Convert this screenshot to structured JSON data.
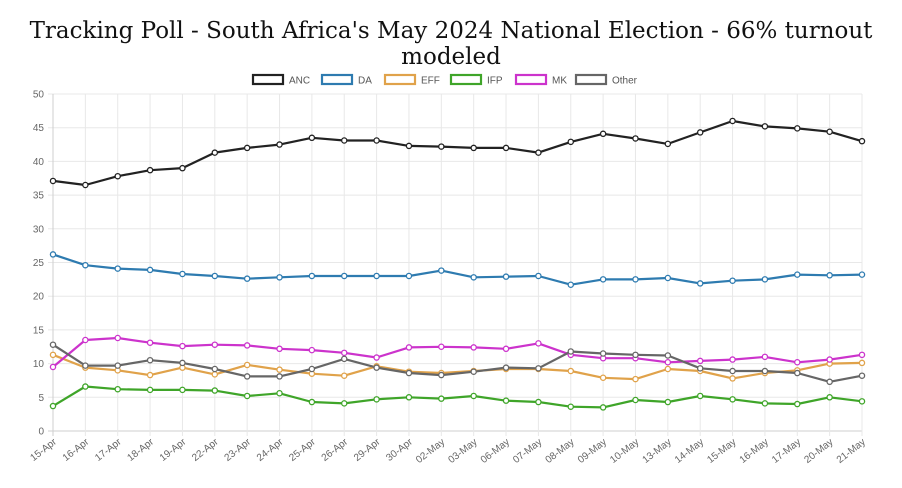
{
  "chart_data": {
    "type": "line",
    "title": "Tracking Poll - South Africa's May 2024 National Election - 66% turnout modeled",
    "xlabel": "",
    "ylabel": "",
    "ylim": [
      0,
      50
    ],
    "yticks": [
      0,
      5,
      10,
      15,
      20,
      25,
      30,
      35,
      40,
      45,
      50
    ],
    "grid": true,
    "legend_position": "top",
    "categories": [
      "15-Apr",
      "16-Apr",
      "17-Apr",
      "18-Apr",
      "19-Apr",
      "22-Apr",
      "23-Apr",
      "24-Apr",
      "25-Apr",
      "26-Apr",
      "29-Apr",
      "30-Apr",
      "02-May",
      "03-May",
      "06-May",
      "07-May",
      "08-May",
      "09-May",
      "10-May",
      "13-May",
      "14-May",
      "15-May",
      "16-May",
      "17-May",
      "20-May",
      "21-May"
    ],
    "series": [
      {
        "name": "ANC",
        "color": "#222222",
        "values": [
          37.1,
          36.5,
          37.8,
          38.7,
          39.0,
          41.3,
          42.0,
          42.5,
          43.5,
          43.1,
          43.1,
          42.3,
          42.2,
          42.0,
          42.0,
          41.3,
          42.9,
          44.1,
          43.4,
          42.6,
          44.3,
          46.0,
          45.2,
          44.9,
          44.4,
          43.0
        ]
      },
      {
        "name": "DA",
        "color": "#2e7bb0",
        "values": [
          26.2,
          24.6,
          24.1,
          23.9,
          23.3,
          23.0,
          22.6,
          22.8,
          23.0,
          23.0,
          23.0,
          23.0,
          23.8,
          22.8,
          22.9,
          23.0,
          21.7,
          22.5,
          22.5,
          22.7,
          21.9,
          22.3,
          22.5,
          23.2,
          23.1,
          23.2
        ]
      },
      {
        "name": "EFF",
        "color": "#e0a24a",
        "values": [
          11.3,
          9.4,
          9.0,
          8.3,
          9.4,
          8.4,
          9.8,
          9.1,
          8.5,
          8.2,
          9.6,
          8.8,
          8.6,
          8.9,
          9.2,
          9.2,
          8.9,
          7.9,
          7.7,
          9.2,
          8.9,
          7.8,
          8.6,
          9.0,
          10.0,
          10.1
        ]
      },
      {
        "name": "IFP",
        "color": "#3fa529",
        "values": [
          3.7,
          6.6,
          6.2,
          6.1,
          6.1,
          6.0,
          5.2,
          5.6,
          4.3,
          4.1,
          4.7,
          5.0,
          4.8,
          5.2,
          4.5,
          4.3,
          3.6,
          3.5,
          4.6,
          4.3,
          5.2,
          4.7,
          4.1,
          4.0,
          5.0,
          4.4
        ]
      },
      {
        "name": "MK",
        "color": "#cc33cc",
        "values": [
          9.5,
          13.5,
          13.8,
          13.1,
          12.6,
          12.8,
          12.7,
          12.2,
          12.0,
          11.6,
          10.9,
          12.4,
          12.5,
          12.4,
          12.2,
          13.0,
          11.3,
          10.8,
          10.8,
          10.2,
          10.4,
          10.6,
          11.0,
          10.2,
          10.6,
          11.3
        ]
      },
      {
        "name": "Other",
        "color": "#666666",
        "values": [
          12.8,
          9.7,
          9.7,
          10.5,
          10.1,
          9.2,
          8.1,
          8.1,
          9.2,
          10.7,
          9.4,
          8.6,
          8.3,
          8.8,
          9.4,
          9.3,
          11.8,
          11.5,
          11.3,
          11.2,
          9.3,
          8.9,
          8.9,
          8.6,
          7.3,
          8.2
        ]
      }
    ]
  }
}
